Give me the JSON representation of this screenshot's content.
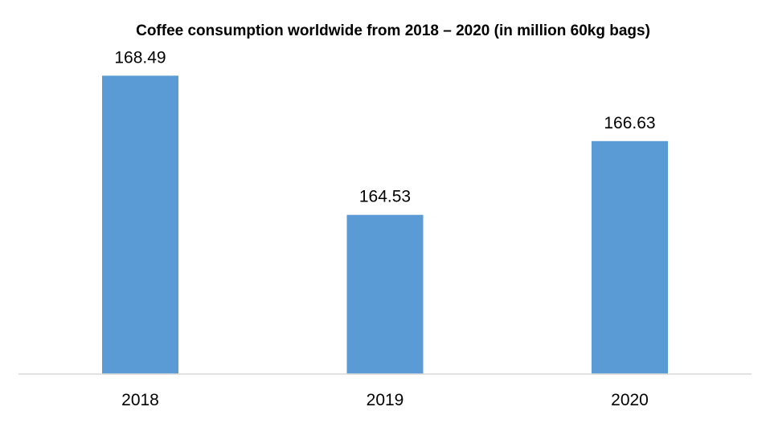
{
  "chart_data": {
    "type": "bar",
    "title": "Coffee consumption  worldwide from 2018 – 2020 (in million 60kg bags)",
    "xlabel": "",
    "ylabel": "",
    "categories": [
      "2018",
      "2019",
      "2020"
    ],
    "values": [
      168.49,
      164.53,
      166.63
    ],
    "data_labels": [
      "168.49",
      "164.53",
      "166.63"
    ],
    "ylim": [
      160,
      169
    ],
    "grid": false,
    "legend": "none",
    "colors": {
      "bar": "#5b9bd5",
      "axis": "#d9d9d9",
      "text": "#000000"
    }
  }
}
